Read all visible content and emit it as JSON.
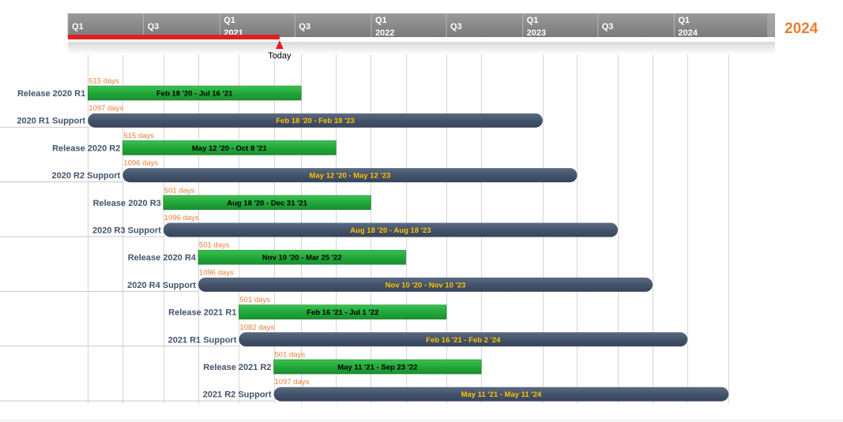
{
  "header": {
    "end_year_label": "2024",
    "today_label": "Today",
    "today_date": "2021-05-25",
    "quarters": [
      {
        "date": "2020-01-01",
        "quarter": "Q1",
        "year": ""
      },
      {
        "date": "2020-07-01",
        "quarter": "Q3",
        "year": ""
      },
      {
        "date": "2021-01-01",
        "quarter": "Q1",
        "year": "2021"
      },
      {
        "date": "2021-07-01",
        "quarter": "Q3",
        "year": ""
      },
      {
        "date": "2022-01-01",
        "quarter": "Q1",
        "year": "2022"
      },
      {
        "date": "2022-07-01",
        "quarter": "Q3",
        "year": ""
      },
      {
        "date": "2023-01-01",
        "quarter": "Q1",
        "year": "2023"
      },
      {
        "date": "2023-07-01",
        "quarter": "Q3",
        "year": ""
      },
      {
        "date": "2024-01-01",
        "quarter": "Q1",
        "year": "2024"
      }
    ]
  },
  "colors": {
    "release": "#22a73a",
    "support": "#44546a",
    "today_bar": "#e02020",
    "duration_text": "#ed7d31",
    "support_text": "#ffc000",
    "header_bg": "#8a8a8a"
  },
  "chart_data": {
    "type": "gantt",
    "x_range": [
      "2020-01-01",
      "2024-08-31"
    ],
    "tasks": [
      {
        "name": "Release 2020 R1",
        "kind": "release",
        "start": "2020-02-18",
        "end": "2021-07-16",
        "duration": "515 days",
        "range_label": "Feb 18 '20 - Jul 16 '21"
      },
      {
        "name": "2020 R1 Support",
        "kind": "support",
        "start": "2020-02-18",
        "end": "2023-02-18",
        "duration": "1097 days",
        "range_label": "Feb 18 '20 - Feb 18 '23"
      },
      {
        "name": "Release 2020 R2",
        "kind": "release",
        "start": "2020-05-12",
        "end": "2021-10-08",
        "duration": "515 days",
        "range_label": "May 12 '20 - Oct 8 '21"
      },
      {
        "name": "2020 R2 Support",
        "kind": "support",
        "start": "2020-05-12",
        "end": "2023-05-12",
        "duration": "1096 days",
        "range_label": "May 12 '20 - May 12 '23"
      },
      {
        "name": "Release 2020 R3",
        "kind": "release",
        "start": "2020-08-18",
        "end": "2021-12-31",
        "duration": "501 days",
        "range_label": "Aug 18 '20 - Dec 31 '21"
      },
      {
        "name": "2020 R3 Support",
        "kind": "support",
        "start": "2020-08-18",
        "end": "2023-08-18",
        "duration": "1096 days",
        "range_label": "Aug 18 '20 - Aug 18 '23"
      },
      {
        "name": "Release 2020 R4",
        "kind": "release",
        "start": "2020-11-10",
        "end": "2022-03-25",
        "duration": "501 days",
        "range_label": "Nov 10 '20 - Mar 25 '22"
      },
      {
        "name": "2020 R4 Support",
        "kind": "support",
        "start": "2020-11-10",
        "end": "2023-11-10",
        "duration": "1096 days",
        "range_label": "Nov 10 '20 - Nov 10 '23"
      },
      {
        "name": "Release 2021 R1",
        "kind": "release",
        "start": "2021-02-16",
        "end": "2022-07-01",
        "duration": "501 days",
        "range_label": "Feb 16 '21 - Jul 1 '22"
      },
      {
        "name": "2021 R1 Support",
        "kind": "support",
        "start": "2021-02-16",
        "end": "2024-02-02",
        "duration": "1082 days",
        "range_label": "Feb 16 '21 - Feb 2 '24"
      },
      {
        "name": "Release 2021 R2",
        "kind": "release",
        "start": "2021-05-11",
        "end": "2022-09-23",
        "duration": "501 days",
        "range_label": "May 11 '21 - Sep 23 '22"
      },
      {
        "name": "2021 R2 Support",
        "kind": "support",
        "start": "2021-05-11",
        "end": "2024-05-11",
        "duration": "1097 days",
        "range_label": "May 11 '21 - May 11 '24"
      }
    ]
  }
}
